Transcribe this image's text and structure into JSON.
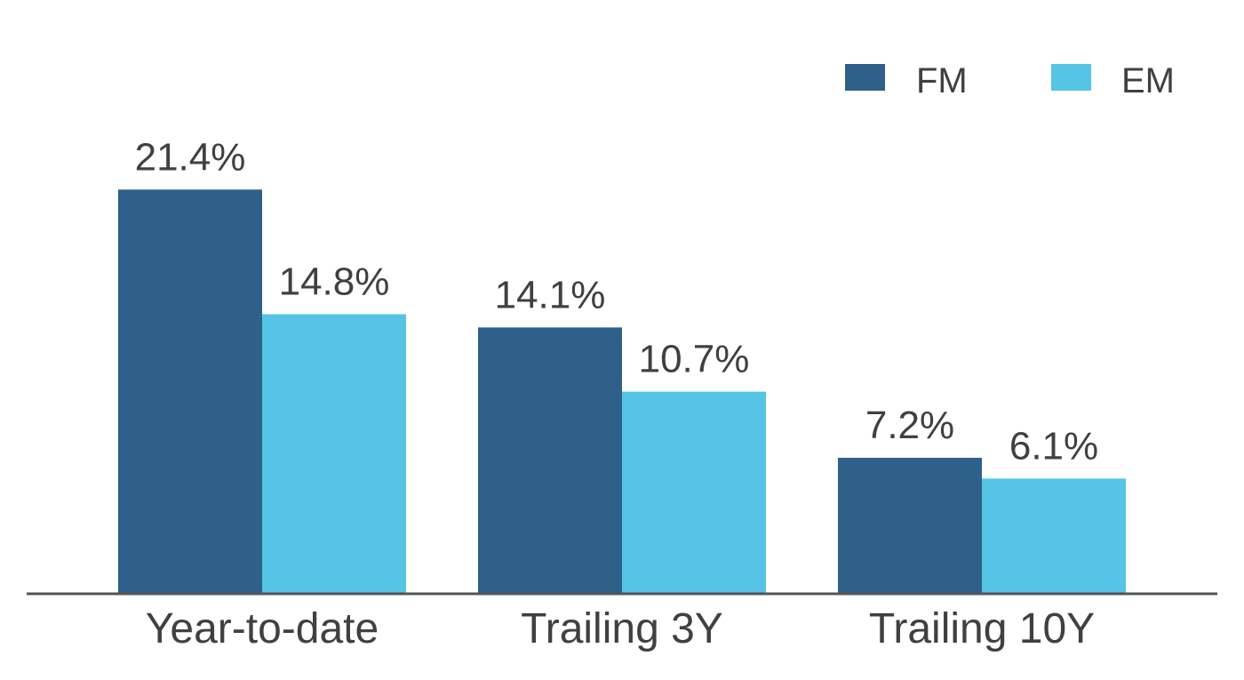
{
  "colors": {
    "fm": "#2e6089",
    "em": "#56c4e4",
    "axis": "#555555",
    "text": "#404040"
  },
  "chart_data": {
    "type": "bar",
    "categories": [
      "Year-to-date",
      "Trailing 3Y",
      "Trailing 10Y"
    ],
    "series": [
      {
        "name": "FM",
        "color": "#2e6089",
        "values": [
          21.4,
          14.1,
          7.2
        ],
        "labels": [
          "21.4%",
          "14.1%",
          "7.2%"
        ]
      },
      {
        "name": "EM",
        "color": "#56c4e4",
        "values": [
          14.8,
          10.7,
          6.1
        ],
        "labels": [
          "14.8%",
          "10.7%",
          "6.1%"
        ]
      }
    ],
    "ylim": [
      0,
      25
    ],
    "grid": false,
    "legend": "top-right",
    "unit": "%"
  }
}
